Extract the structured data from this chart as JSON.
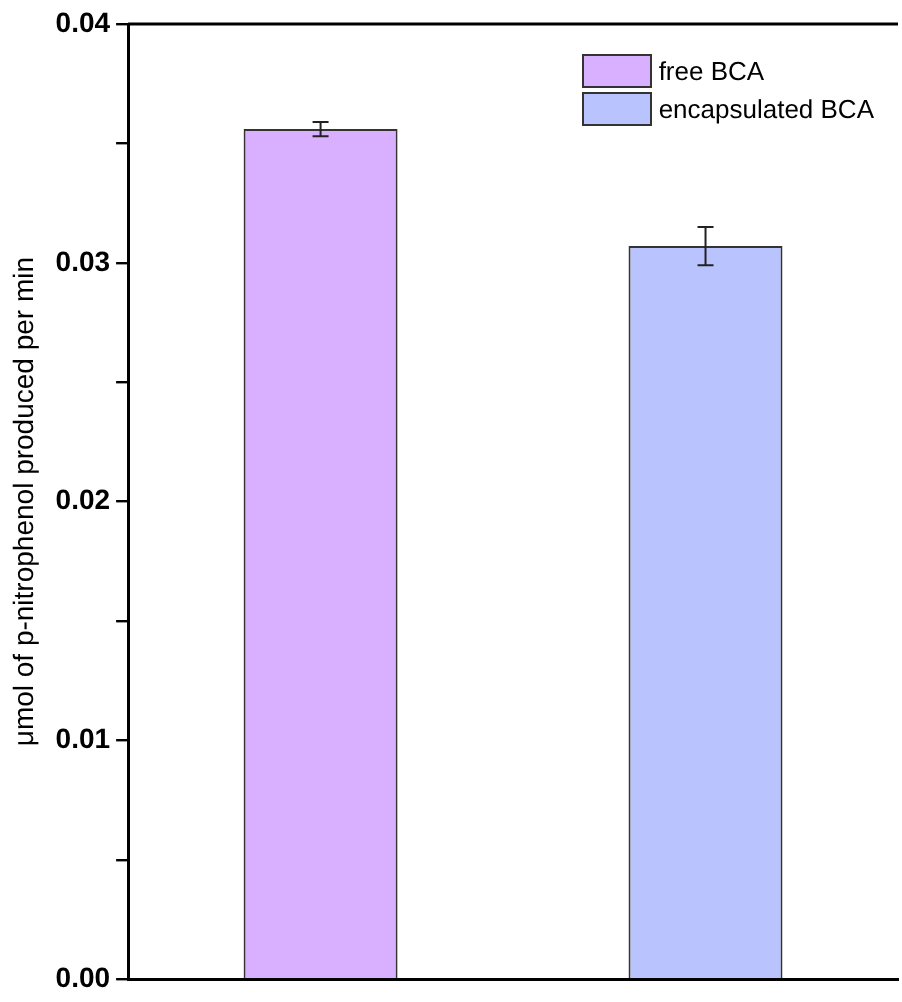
{
  "chart_data": {
    "type": "bar",
    "ylabel": "μmol of p-nitrophenol produced per min",
    "categories": [
      null,
      null
    ],
    "series": [
      {
        "name": "free BCA",
        "color": "#d8b0ff",
        "values": [
          0.0356,
          null
        ],
        "errors": [
          0.0003,
          null
        ]
      },
      {
        "name": "encapsulated BCA",
        "color": "#b9c4ff",
        "values": [
          null,
          0.0307
        ],
        "errors": [
          null,
          0.0008
        ]
      }
    ],
    "ylim": [
      0,
      0.04
    ],
    "yticks": [
      {
        "value": 0,
        "label": "0.00"
      },
      {
        "value": 0.005,
        "label": null
      },
      0.01,
      {
        "value": 0.015,
        "label": null
      },
      0.02,
      {
        "value": 0.025,
        "label": null
      },
      0.03,
      {
        "value": 0.035,
        "label": null
      },
      0.04
    ],
    "grid": false,
    "legend": "top right",
    "tick_labels": "y"
  }
}
